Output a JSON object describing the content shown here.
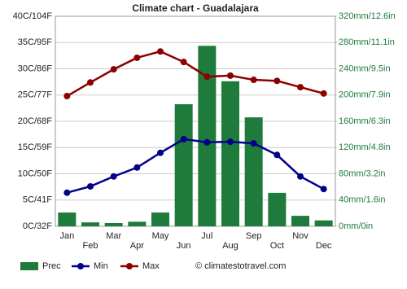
{
  "chart_data": {
    "type": "bar",
    "title": "Climate chart - Guadalajara",
    "categories": [
      "Jan",
      "Feb",
      "Mar",
      "Apr",
      "May",
      "Jun",
      "Jul",
      "Aug",
      "Sep",
      "Oct",
      "Nov",
      "Dec"
    ],
    "series": [
      {
        "name": "Prec",
        "type": "bar",
        "axis": "y2",
        "color": "#1e7b3b",
        "values": [
          21,
          6,
          5,
          7,
          21,
          186,
          275,
          221,
          166,
          51,
          16,
          9
        ]
      },
      {
        "name": "Min",
        "type": "line",
        "color": "#00008b",
        "values": [
          6.4,
          7.6,
          9.5,
          11.2,
          14.0,
          16.6,
          16.0,
          16.1,
          15.8,
          13.6,
          9.5,
          7.1
        ]
      },
      {
        "name": "Max",
        "type": "line",
        "color": "#8b0000",
        "values": [
          24.8,
          27.4,
          29.9,
          32.1,
          33.3,
          31.3,
          28.5,
          28.7,
          27.9,
          27.7,
          26.5,
          25.3
        ]
      }
    ],
    "ylim": [
      0,
      40
    ],
    "yticks": [
      {
        "value": 0,
        "label": "0C/32F"
      },
      {
        "value": 5,
        "label": "5C/41F"
      },
      {
        "value": 10,
        "label": "10C/50F"
      },
      {
        "value": 15,
        "label": "15C/59F"
      },
      {
        "value": 20,
        "label": "20C/68F"
      },
      {
        "value": 25,
        "label": "25C/77F"
      },
      {
        "value": 30,
        "label": "30C/86F"
      },
      {
        "value": 35,
        "label": "35C/95F"
      },
      {
        "value": 40,
        "label": "40C/104F"
      }
    ],
    "y2lim": [
      0,
      320
    ],
    "y2ticks": [
      {
        "value": 0,
        "label": "0mm/0in"
      },
      {
        "value": 40,
        "label": "40mm/1.6in"
      },
      {
        "value": 80,
        "label": "80mm/3.2in"
      },
      {
        "value": 120,
        "label": "120mm/4.8in"
      },
      {
        "value": 160,
        "label": "160mm/6.3in"
      },
      {
        "value": 200,
        "label": "200mm/7.9in"
      },
      {
        "value": 240,
        "label": "240mm/9.5in"
      },
      {
        "value": 280,
        "label": "280mm/11.1in"
      },
      {
        "value": 320,
        "label": "320mm/12.6in"
      }
    ],
    "y2color": "#1e7b3b",
    "grid": true,
    "legend": "bottom",
    "source": "© climatestotravel.com"
  }
}
